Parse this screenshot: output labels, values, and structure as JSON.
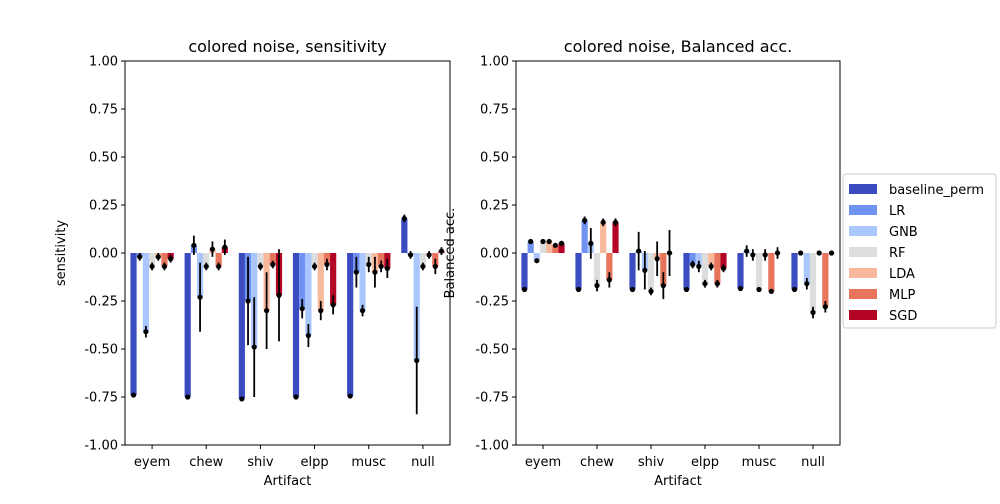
{
  "figure": {
    "legend": [
      {
        "name": "baseline_perm",
        "color": "#3b4cc0"
      },
      {
        "name": "LR",
        "color": "#6f92f3"
      },
      {
        "name": "GNB",
        "color": "#aac7fd"
      },
      {
        "name": "RF",
        "color": "#dcdddd"
      },
      {
        "name": "LDA",
        "color": "#f7b89c"
      },
      {
        "name": "MLP",
        "color": "#e7745b"
      },
      {
        "name": "SGD",
        "color": "#b40426"
      }
    ],
    "legend_placement": "center-right outside"
  },
  "chart_data": [
    {
      "type": "bar",
      "title": "colored noise, sensitivity",
      "xlabel": "Artifact",
      "ylabel": "sensitivity",
      "ylim": [
        -1.0,
        1.0
      ],
      "yticks": [
        "-1.00",
        "-0.75",
        "-0.50",
        "-0.25",
        "0.00",
        "0.25",
        "0.50",
        "0.75",
        "1.00"
      ],
      "grid": false,
      "categories": [
        "eyem",
        "chew",
        "shiv",
        "elpp",
        "musc",
        "null"
      ],
      "series": [
        {
          "name": "baseline_perm",
          "values": [
            -0.74,
            -0.75,
            -0.76,
            -0.75,
            -0.745,
            0.18
          ],
          "errors": [
            0.01,
            0.01,
            0.01,
            0.01,
            0.01,
            0.02
          ]
        },
        {
          "name": "LR",
          "values": [
            -0.02,
            0.04,
            -0.25,
            -0.29,
            -0.1,
            -0.01
          ],
          "errors": [
            0.02,
            0.05,
            0.23,
            0.05,
            0.08,
            0.02
          ]
        },
        {
          "name": "GNB",
          "values": [
            -0.41,
            -0.23,
            -0.49,
            -0.43,
            -0.3,
            -0.56
          ],
          "errors": [
            0.03,
            0.18,
            0.26,
            0.06,
            0.03,
            0.28
          ]
        },
        {
          "name": "RF",
          "values": [
            -0.07,
            -0.07,
            -0.07,
            -0.07,
            -0.06,
            -0.07
          ],
          "errors": [
            0.02,
            0.02,
            0.02,
            0.02,
            0.04,
            0.02
          ]
        },
        {
          "name": "LDA",
          "values": [
            -0.02,
            0.02,
            -0.3,
            -0.3,
            -0.1,
            -0.01
          ],
          "errors": [
            0.02,
            0.04,
            0.2,
            0.05,
            0.08,
            0.02
          ]
        },
        {
          "name": "MLP",
          "values": [
            -0.07,
            -0.07,
            -0.06,
            -0.06,
            -0.07,
            -0.07
          ],
          "errors": [
            0.02,
            0.02,
            0.02,
            0.03,
            0.03,
            0.04
          ]
        },
        {
          "name": "SGD",
          "values": [
            -0.03,
            0.03,
            -0.22,
            -0.27,
            -0.08,
            0.01
          ],
          "errors": [
            0.02,
            0.04,
            0.24,
            0.05,
            0.05,
            0.02
          ]
        }
      ]
    },
    {
      "type": "bar",
      "title": "colored noise, Balanced acc.",
      "xlabel": "Artifact",
      "ylabel": "Balanced acc.",
      "ylim": [
        -1.0,
        1.0
      ],
      "yticks": [
        "-1.00",
        "-0.75",
        "-0.50",
        "-0.25",
        "0.00",
        "0.25",
        "0.50",
        "0.75",
        "1.00"
      ],
      "grid": false,
      "categories": [
        "eyem",
        "chew",
        "shiv",
        "elpp",
        "musc",
        "null"
      ],
      "series": [
        {
          "name": "baseline_perm",
          "values": [
            -0.19,
            -0.19,
            -0.19,
            -0.19,
            -0.185,
            -0.19
          ],
          "errors": [
            0.005,
            0.005,
            0.005,
            0.005,
            0.005,
            0.005
          ]
        },
        {
          "name": "LR",
          "values": [
            0.06,
            0.17,
            0.01,
            -0.06,
            0.01,
            0.0
          ],
          "errors": [
            0.01,
            0.02,
            0.1,
            0.02,
            0.03,
            0.01
          ]
        },
        {
          "name": "GNB",
          "values": [
            -0.04,
            0.05,
            -0.09,
            -0.07,
            -0.01,
            -0.16
          ],
          "errors": [
            0.01,
            0.08,
            0.1,
            0.03,
            0.03,
            0.03
          ]
        },
        {
          "name": "RF",
          "values": [
            0.06,
            -0.17,
            -0.2,
            -0.16,
            -0.19,
            -0.31
          ],
          "errors": [
            0.01,
            0.03,
            0.02,
            0.02,
            0.01,
            0.03
          ]
        },
        {
          "name": "LDA",
          "values": [
            0.06,
            0.16,
            -0.03,
            -0.07,
            -0.01,
            0.0
          ],
          "errors": [
            0.01,
            0.02,
            0.09,
            0.02,
            0.03,
            0.01
          ]
        },
        {
          "name": "MLP",
          "values": [
            0.04,
            -0.14,
            -0.17,
            -0.16,
            -0.2,
            -0.28
          ],
          "errors": [
            0.01,
            0.04,
            0.07,
            0.02,
            0.01,
            0.03
          ]
        },
        {
          "name": "SGD",
          "values": [
            0.05,
            0.16,
            0.0,
            -0.08,
            0.0,
            0.0
          ],
          "errors": [
            0.01,
            0.02,
            0.12,
            0.02,
            0.03,
            0.01
          ]
        }
      ]
    }
  ]
}
